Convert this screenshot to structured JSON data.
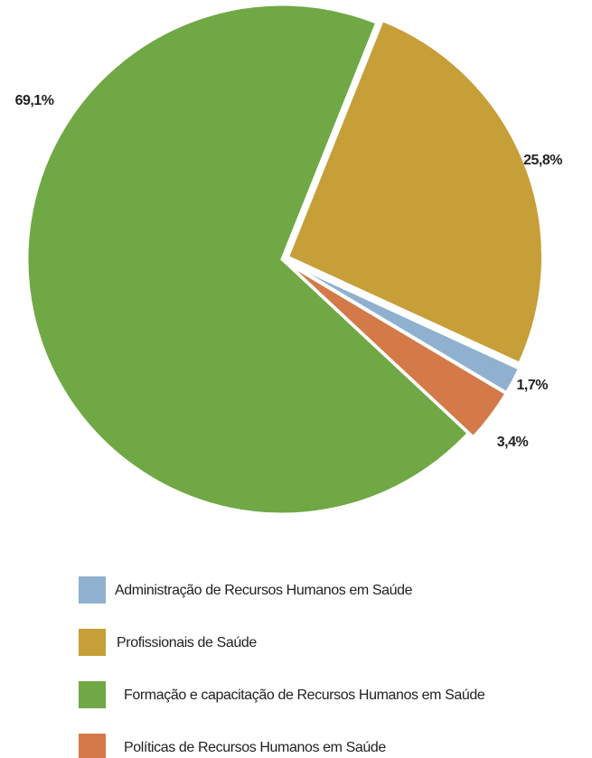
{
  "chart_data": {
    "type": "pie",
    "categories": [
      "Administração de Recursos Humanos em Saúde",
      "Profissionais de Saúde",
      "Formação e capacitação de Recursos Humanos em Saúde",
      "Políticas de Recursos Humanos em Saúde"
    ],
    "values": [
      1.7,
      25.8,
      69.1,
      3.4
    ],
    "value_labels": [
      "1,7%",
      "25,8%",
      "69,1%",
      "3,4%"
    ],
    "colors": [
      "#8fb1cf",
      "#c69f38",
      "#6fa844",
      "#d37a48"
    ],
    "legend": "bottom"
  }
}
